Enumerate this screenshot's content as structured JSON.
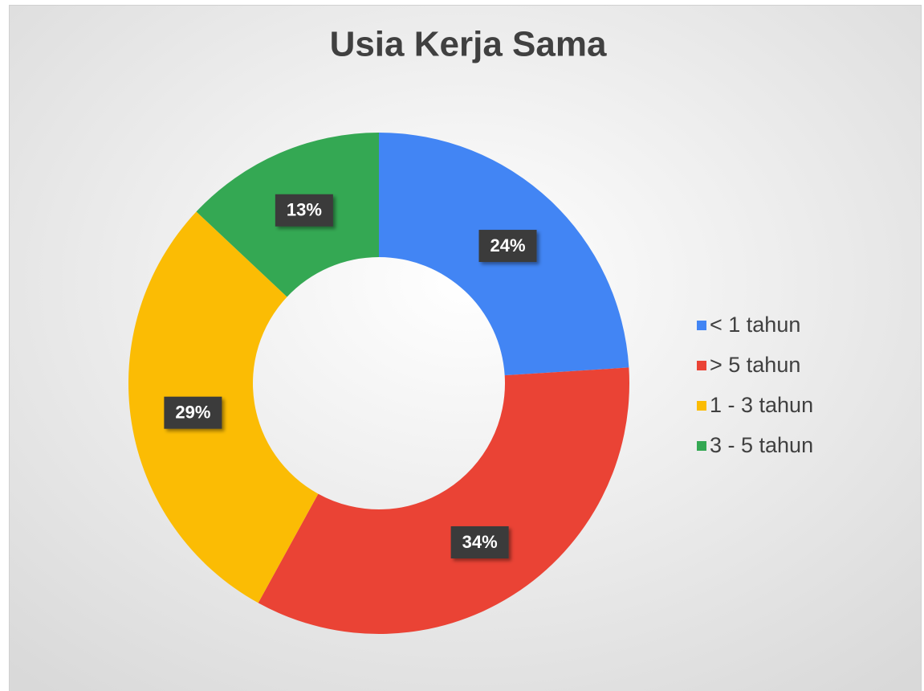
{
  "chart_data": {
    "type": "donut",
    "title": "Usia Kerja Sama",
    "categories": [
      "< 1 tahun",
      "> 5 tahun",
      "1 - 3 tahun",
      "3 - 5 tahun"
    ],
    "values": [
      24,
      34,
      29,
      13
    ],
    "value_labels": [
      "24%",
      "34%",
      "29%",
      "13%"
    ],
    "colors": [
      "#4285f4",
      "#ea4335",
      "#fbbc04",
      "#34a853"
    ],
    "legend": "right"
  }
}
